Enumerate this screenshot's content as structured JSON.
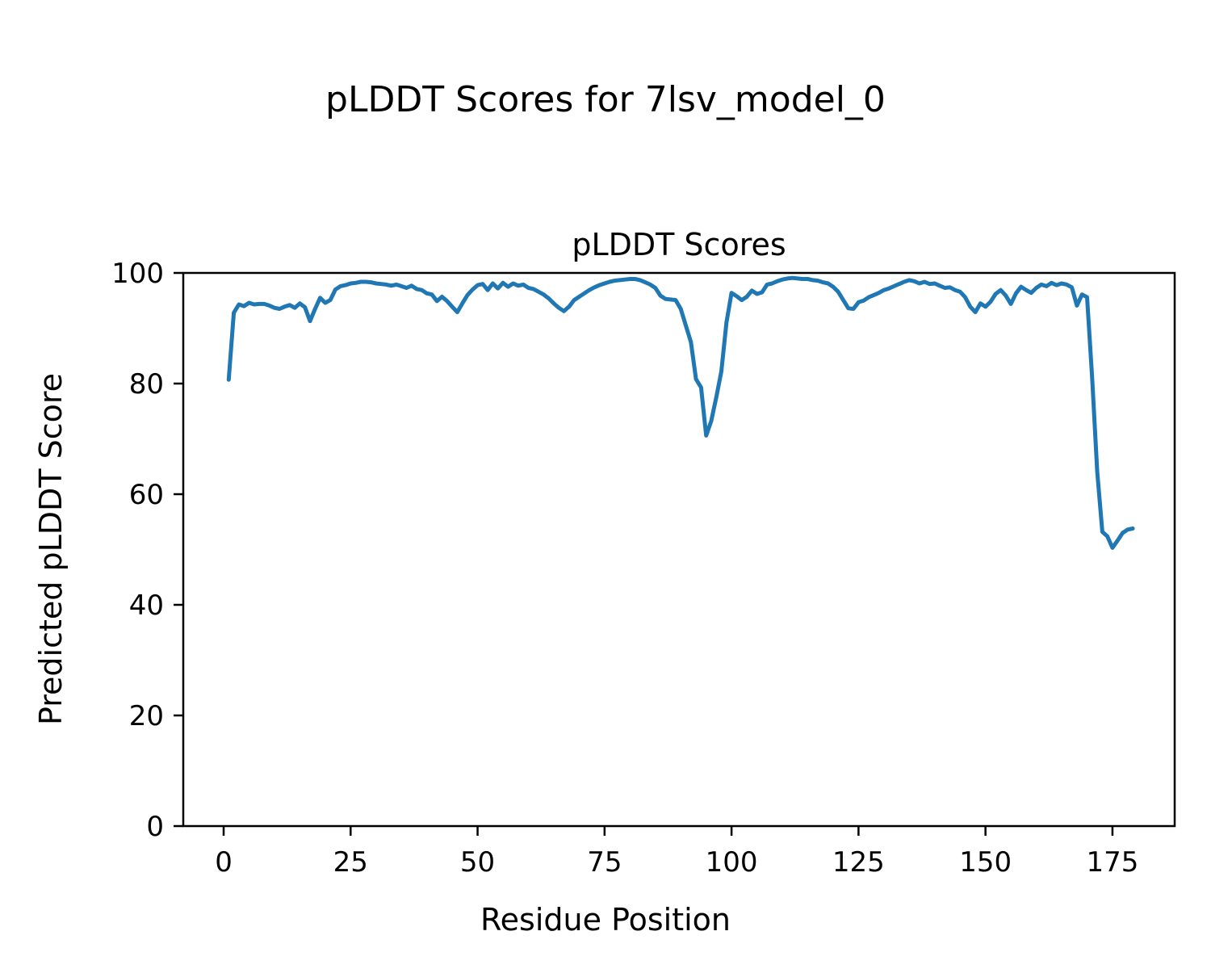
{
  "figure": {
    "suptitle": "pLDDT Scores for 7lsv_model_0",
    "background_color": "#ffffff",
    "text_color": "#000000"
  },
  "chart_data": {
    "type": "line",
    "title": "pLDDT Scores",
    "xlabel": "Residue Position",
    "ylabel": "Predicted pLDDT Score",
    "xlim": [
      -7.95,
      187.25
    ],
    "ylim": [
      0,
      100
    ],
    "xticks": [
      0,
      25,
      50,
      75,
      100,
      125,
      150,
      175
    ],
    "yticks": [
      0,
      20,
      40,
      60,
      80,
      100
    ],
    "grid": false,
    "legend": "none",
    "line_color": "#1f77b4",
    "series": [
      {
        "name": "pLDDT",
        "x_start": 1,
        "x_step": 1,
        "values": [
          80.7,
          92.8,
          94.3,
          94.0,
          94.6,
          94.3,
          94.4,
          94.4,
          94.1,
          93.7,
          93.5,
          93.9,
          94.2,
          93.7,
          94.5,
          93.8,
          91.3,
          93.5,
          95.5,
          94.6,
          95.1,
          97.0,
          97.6,
          97.8,
          98.1,
          98.2,
          98.4,
          98.4,
          98.3,
          98.1,
          98.0,
          97.9,
          97.7,
          97.9,
          97.6,
          97.3,
          97.7,
          97.1,
          96.9,
          96.3,
          96.1,
          94.9,
          95.7,
          94.9,
          93.9,
          92.9,
          94.5,
          96.0,
          97.0,
          97.8,
          98.0,
          96.9,
          98.1,
          97.2,
          98.2,
          97.5,
          98.1,
          97.7,
          97.9,
          97.3,
          97.1,
          96.6,
          96.1,
          95.4,
          94.5,
          93.7,
          93.1,
          93.9,
          95.1,
          95.7,
          96.3,
          96.9,
          97.4,
          97.8,
          98.1,
          98.4,
          98.6,
          98.7,
          98.8,
          98.9,
          98.9,
          98.7,
          98.3,
          97.9,
          97.3,
          95.9,
          95.3,
          95.2,
          95.1,
          93.5,
          90.5,
          87.5,
          80.8,
          79.3,
          70.6,
          73.2,
          77.5,
          82.2,
          91.0,
          96.4,
          95.8,
          95.1,
          95.7,
          96.8,
          96.2,
          96.5,
          97.9,
          98.1,
          98.5,
          98.8,
          99.0,
          99.1,
          99.0,
          98.9,
          98.9,
          98.7,
          98.6,
          98.3,
          98.1,
          97.5,
          96.6,
          95.1,
          93.6,
          93.5,
          94.7,
          95.0,
          95.6,
          96.0,
          96.4,
          96.9,
          97.2,
          97.6,
          98.0,
          98.4,
          98.7,
          98.5,
          98.1,
          98.4,
          98.0,
          98.1,
          97.7,
          97.3,
          97.4,
          96.9,
          96.6,
          95.6,
          93.9,
          92.9,
          94.5,
          93.9,
          94.8,
          96.2,
          96.9,
          95.9,
          94.4,
          96.3,
          97.5,
          96.9,
          96.4,
          97.3,
          97.9,
          97.6,
          98.2,
          97.8,
          98.1,
          97.9,
          97.4,
          94.1,
          96.1,
          95.6,
          81.0,
          64.0,
          53.2,
          52.4,
          50.3,
          51.6,
          53.0,
          53.6,
          53.8
        ]
      }
    ]
  }
}
